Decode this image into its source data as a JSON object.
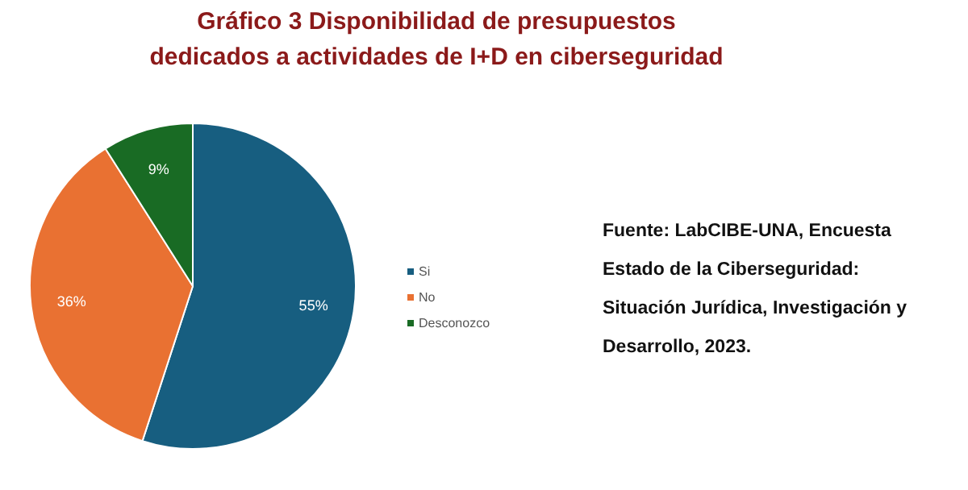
{
  "chart_data": {
    "type": "pie",
    "title": "Gráfico 3 Disponibilidad de presupuestos\ndedicados a actividades de I+D en ciberseguridad",
    "categories": [
      "Si",
      "No",
      "Desconozco"
    ],
    "values": [
      55,
      36,
      9
    ],
    "colors": [
      "#175e80",
      "#e97132",
      "#196b24"
    ],
    "value_labels": [
      "55%",
      "36%",
      "9%"
    ],
    "legend": "right",
    "annotations": [
      "Fuente: LabCIBE-UNA, Encuesta Estado de la Ciberseguridad: Situación Jurídica, Investigación y Desarrollo, 2023."
    ]
  }
}
